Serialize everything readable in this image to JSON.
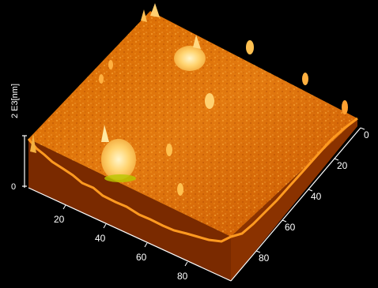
{
  "figure": {
    "z_axis_label": "2 E3[nm]",
    "z_tick_0": "0",
    "x_ticks": [
      "20",
      "40",
      "60",
      "80"
    ],
    "y_ticks": [
      "0",
      "20",
      "40",
      "60",
      "80"
    ]
  }
}
